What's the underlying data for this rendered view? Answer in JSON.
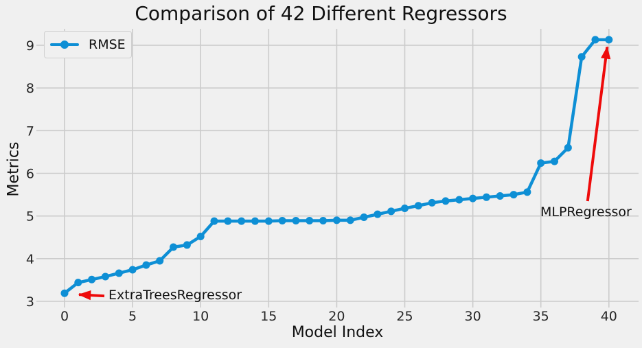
{
  "title": "Comparison of 42 Different Regressors",
  "legend": {
    "label": "RMSE"
  },
  "colors": {
    "background": "#f0f0f0",
    "grid": "#cbcbcb",
    "line": "#0e8fd5",
    "annotation_arrow": "#ee0b0b",
    "text": "#111111"
  },
  "chart_data": {
    "type": "line",
    "title": "Comparison of 42 Different Regressors",
    "xlabel": "Model Index",
    "ylabel": "Metrics",
    "grid": true,
    "legend_position": "upper left",
    "x_ticks": [
      0,
      5,
      10,
      15,
      20,
      25,
      30,
      35,
      40
    ],
    "y_ticks": [
      3,
      4,
      5,
      6,
      7,
      8,
      9
    ],
    "xlim": [
      -2.1,
      42.2
    ],
    "ylim": [
      2.86,
      9.37
    ],
    "series": [
      {
        "name": "RMSE",
        "color": "#0e8fd5",
        "x": [
          0,
          1,
          2,
          3,
          4,
          5,
          6,
          7,
          8,
          9,
          10,
          11,
          12,
          13,
          14,
          15,
          16,
          17,
          18,
          19,
          20,
          21,
          22,
          23,
          24,
          25,
          26,
          27,
          28,
          29,
          30,
          31,
          32,
          33,
          34,
          35,
          36,
          37,
          38,
          39,
          40
        ],
        "values": [
          3.19,
          3.44,
          3.51,
          3.58,
          3.66,
          3.74,
          3.85,
          3.95,
          4.27,
          4.32,
          4.52,
          4.88,
          4.88,
          4.88,
          4.88,
          4.88,
          4.89,
          4.89,
          4.89,
          4.89,
          4.9,
          4.9,
          4.97,
          5.04,
          5.11,
          5.18,
          5.24,
          5.31,
          5.35,
          5.38,
          5.41,
          5.44,
          5.47,
          5.5,
          5.56,
          6.24,
          6.28,
          6.6,
          8.73,
          9.13,
          9.13
        ]
      }
    ],
    "annotations": [
      {
        "text": "ExtraTreesRegressor",
        "target_x": 0,
        "target_y": 3.19,
        "color": "#ee0b0b"
      },
      {
        "text": "MLPRegressor",
        "target_x": 40,
        "target_y": 9.13,
        "color": "#ee0b0b"
      }
    ]
  }
}
